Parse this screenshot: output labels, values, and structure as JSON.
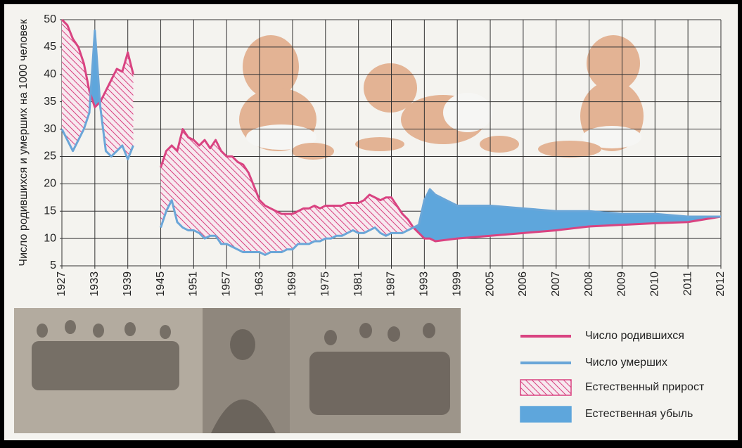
{
  "chart_data": {
    "type": "line",
    "y_label": "Число родившихся и умерших на 1000 человек",
    "x": [
      1927,
      1928,
      1929,
      1930,
      1931,
      1932,
      1933,
      1934,
      1935,
      1936,
      1937,
      1938,
      1939,
      1940,
      1941,
      1945,
      1946,
      1947,
      1948,
      1949,
      1950,
      1951,
      1952,
      1953,
      1954,
      1955,
      1956,
      1957,
      1958,
      1959,
      1960,
      1961,
      1962,
      1963,
      1964,
      1965,
      1966,
      1967,
      1968,
      1969,
      1970,
      1971,
      1972,
      1973,
      1974,
      1975,
      1976,
      1977,
      1978,
      1979,
      1980,
      1981,
      1982,
      1983,
      1984,
      1985,
      1986,
      1987,
      1988,
      1989,
      1990,
      1991,
      1992,
      1993,
      1994,
      1995,
      1999,
      2005,
      2006,
      2007,
      2008,
      2009,
      2010,
      2011,
      2012
    ],
    "series": [
      {
        "name": "Число родившихся",
        "color": "#d94381",
        "values": [
          50,
          49,
          46.5,
          45,
          42,
          37,
          34,
          35,
          37,
          39,
          41,
          40.5,
          44,
          40,
          null,
          23,
          26,
          27,
          26,
          30,
          28.5,
          28,
          27,
          28,
          26.5,
          28,
          26,
          25,
          25,
          24,
          23.5,
          22,
          19.5,
          17,
          16,
          15.5,
          15,
          14.5,
          14.5,
          14.5,
          15,
          15.5,
          15.5,
          16,
          15.5,
          16,
          16,
          16,
          16,
          16.5,
          16.5,
          16.5,
          17,
          18,
          17.5,
          17,
          17.5,
          17.5,
          16,
          14.5,
          13.5,
          12,
          11,
          10,
          10,
          9.5,
          10,
          10.5,
          11,
          11.5,
          12.2,
          12.5,
          12.8,
          13,
          14
        ]
      },
      {
        "name": "Число умерших",
        "color": "#6aa6d8",
        "values": [
          30,
          28,
          26,
          28,
          30,
          33,
          48,
          34,
          26,
          25,
          26,
          27,
          24.5,
          27,
          null,
          12,
          15,
          17,
          13,
          12,
          11.5,
          11.5,
          11,
          10,
          10.5,
          10.5,
          9,
          9,
          8.5,
          8,
          7.5,
          7.5,
          7.5,
          7.5,
          7,
          7.5,
          7.5,
          7.5,
          8,
          8,
          9,
          9,
          9,
          9.5,
          9.5,
          10,
          10,
          10.5,
          10.5,
          11,
          11.5,
          11,
          11,
          11.5,
          12,
          11,
          10.5,
          11,
          11,
          11,
          11.5,
          12,
          12.5,
          17,
          19,
          18,
          16,
          16,
          15.5,
          15,
          15,
          14.5,
          14.5,
          14,
          14
        ]
      }
    ],
    "areas": [
      {
        "name": "Естественный прирост",
        "color": "#d94381"
      },
      {
        "name": "Естественная убыль",
        "color": "#5ea6dc"
      }
    ],
    "xlim": [
      1927,
      2012
    ],
    "xticks": [
      1927,
      1933,
      1939,
      1945,
      1951,
      1957,
      1963,
      1969,
      1975,
      1981,
      1987,
      1993,
      1999,
      2005,
      2006,
      2007,
      2008,
      2009,
      2010,
      2011,
      2012
    ],
    "ylim": [
      5,
      50
    ],
    "yticks": [
      5,
      10,
      15,
      20,
      25,
      30,
      35,
      40,
      45,
      50
    ],
    "grid": true
  }
}
